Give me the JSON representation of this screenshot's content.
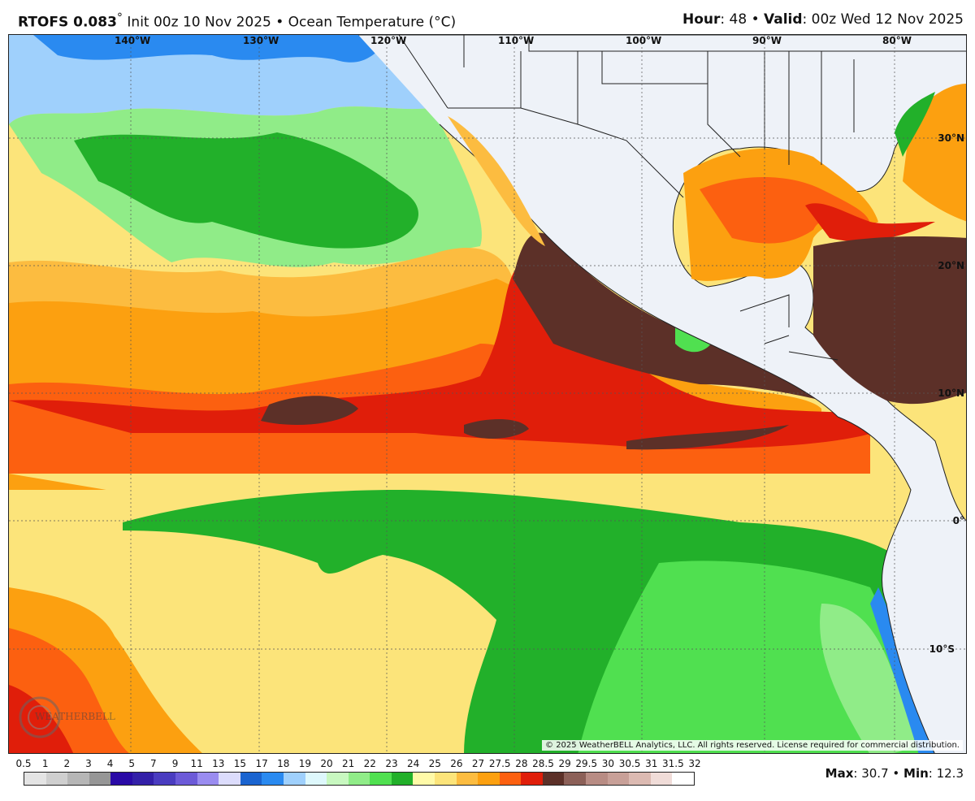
{
  "header": {
    "model": "RTOFS 0.083",
    "degree": "°",
    "init": "Init 00z 10 Nov 2025",
    "sep": "•",
    "product": "Ocean Temperature (°C)",
    "hour_label": "Hour",
    "hour": ": 48",
    "valid_label": "Valid",
    "valid": ": 00z Wed 12 Nov 2025"
  },
  "map": {
    "lon_labels": [
      "140°W",
      "130°W",
      "120°W",
      "110°W",
      "100°W",
      "90°W",
      "80°W"
    ],
    "lat_labels": [
      "30°N",
      "20°N",
      "10°N",
      "0°",
      "10°S"
    ],
    "copyright": "© 2025 WeatherBELL Analytics, LLC. All rights reserved. License required for commercial distribution.",
    "logo_text": "WEATHERBELL"
  },
  "colorbar": {
    "labels": [
      "0.5",
      "1",
      "2",
      "3",
      "4",
      "5",
      "7",
      "9",
      "11",
      "13",
      "15",
      "17",
      "18",
      "19",
      "20",
      "21",
      "22",
      "23",
      "24",
      "25",
      "26",
      "27",
      "27.5",
      "28",
      "28.5",
      "29",
      "29.5",
      "30",
      "30.5",
      "31",
      "31.5",
      "32"
    ],
    "colors": [
      "#e4e4e4",
      "#cfcfcf",
      "#b6b6b6",
      "#969696",
      "#2a0aa6",
      "#3320a8",
      "#4a3cc0",
      "#6c5ad8",
      "#9a8cf0",
      "#dcdcfc",
      "#1a64d0",
      "#2a8af0",
      "#9fd0fc",
      "#def8fc",
      "#c8f8c0",
      "#90ec88",
      "#50e050",
      "#22b02a",
      "#fffaa8",
      "#fce47a",
      "#fcbc40",
      "#fca010",
      "#fc6010",
      "#e01e0a",
      "#5c3028",
      "#8c6058",
      "#b88c84",
      "#c8a098",
      "#dcbab2",
      "#f0dcd8",
      "#ffffff"
    ]
  },
  "stats": {
    "max_label": "Max",
    "max": ": 30.7",
    "sep": " • ",
    "min_label": "Min",
    "min": ": 12.3"
  }
}
